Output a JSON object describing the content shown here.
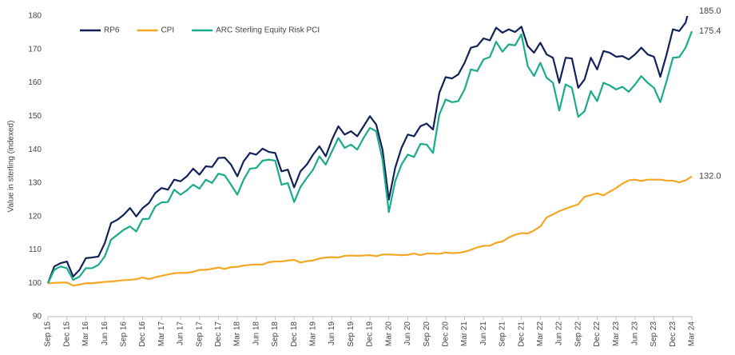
{
  "chart_data": {
    "type": "line",
    "y_label": "Value in sterling (indexed)",
    "ylim": [
      90,
      180
    ],
    "yticks": [
      90,
      100,
      110,
      120,
      130,
      140,
      150,
      160,
      170,
      180
    ],
    "grid": false,
    "legend": "top-left",
    "categories": [
      "Sep 15",
      null,
      null,
      "Dec 15",
      null,
      null,
      "Mar 16",
      null,
      null,
      "Jun 16",
      null,
      null,
      "Sep 16",
      null,
      null,
      "Dec 16",
      null,
      null,
      "Mar 17",
      null,
      null,
      "Jun 17",
      null,
      null,
      "Sep 17",
      null,
      null,
      "Dec 17",
      null,
      null,
      "Mar 18",
      null,
      null,
      "Jun 18",
      null,
      null,
      "Sep 18",
      null,
      null,
      "Dec 18",
      null,
      null,
      "Mar 19",
      null,
      null,
      "Jun 19",
      null,
      null,
      "Sep 19",
      null,
      null,
      "Dec 19",
      null,
      null,
      "Mar 20",
      null,
      null,
      "Jun 20",
      null,
      null,
      "Sep 20",
      null,
      null,
      "Dec 20",
      null,
      null,
      "Mar 21",
      null,
      null,
      "Jun 21",
      null,
      null,
      "Sep 21",
      null,
      null,
      "Dec 21",
      null,
      null,
      "Mar 22",
      null,
      null,
      "Jun 22",
      null,
      null,
      "Sep 22",
      null,
      null,
      "Dec 22",
      null,
      null,
      "Mar 23",
      null,
      null,
      "Jun 23",
      null,
      null,
      "Sep 23",
      null,
      null,
      "Dec 23",
      null,
      null,
      "Mar 24"
    ],
    "series": [
      {
        "name": "RP6",
        "color": "#13215a",
        "values": [
          100,
          105,
          106,
          106.5,
          102,
          104,
          107.5,
          107.7,
          108,
          112,
          118,
          119,
          120.5,
          122.5,
          120,
          122.5,
          124,
          127,
          128.5,
          128,
          131,
          130.5,
          132,
          134.3,
          132.5,
          135,
          134.8,
          137.5,
          137.6,
          135.5,
          132,
          136.5,
          139,
          138.5,
          140.3,
          139.3,
          139,
          133.5,
          134,
          128.7,
          133.5,
          135.5,
          138.5,
          141,
          138,
          143,
          147,
          144.5,
          145.5,
          144,
          147,
          150,
          147.5,
          140,
          125,
          134.5,
          140.5,
          144.5,
          144,
          147,
          147.8,
          146,
          157,
          161.7,
          161.3,
          162.5,
          166,
          170.5,
          171,
          173.3,
          172.7,
          176.5,
          175,
          176,
          175.2,
          176.8,
          171,
          169,
          172,
          168.5,
          167.5,
          160,
          167.5,
          167.3,
          158.5,
          161,
          167.5,
          164,
          169.5,
          169,
          167.8,
          168,
          167,
          168.5,
          170.5,
          168.5,
          167.8,
          161.8,
          168.5,
          176,
          175.5,
          178,
          185.0
        ],
        "value_labels": [
          null,
          null,
          null,
          null,
          null,
          null,
          null,
          null,
          null,
          null,
          null,
          null,
          null,
          null,
          null,
          null,
          null,
          null,
          null,
          null,
          null,
          null,
          null,
          null,
          null,
          null,
          null,
          null,
          null,
          null,
          null,
          null,
          null,
          null,
          null,
          null,
          null,
          null,
          null,
          null,
          null,
          null,
          null,
          null,
          null,
          null,
          null,
          null,
          null,
          null,
          null,
          null,
          null,
          null,
          null,
          null,
          null,
          null,
          null,
          null,
          null,
          null,
          null,
          null,
          null,
          null,
          null,
          null,
          null,
          null,
          null,
          null,
          null,
          null,
          null,
          null,
          null,
          null,
          null,
          null,
          null,
          null,
          null,
          null,
          null,
          null,
          null,
          null,
          null,
          null,
          null,
          null,
          null,
          null,
          null,
          null,
          null,
          null,
          null,
          null,
          null,
          null,
          "185.0"
        ]
      },
      {
        "name": "CPI",
        "color": "#f5a623",
        "values": [
          100,
          100.1,
          100.2,
          100.2,
          99.3,
          99.6,
          100,
          100,
          100.2,
          100.4,
          100.5,
          100.7,
          100.9,
          101,
          101.2,
          101.7,
          101.2,
          101.8,
          102.2,
          102.6,
          103,
          103.1,
          103.1,
          103.4,
          104,
          104,
          104.3,
          104.7,
          104.3,
          104.8,
          104.9,
          105.3,
          105.5,
          105.6,
          105.6,
          106.3,
          106.5,
          106.5,
          106.8,
          107,
          106.2,
          106.6,
          106.8,
          107.4,
          107.7,
          107.8,
          107.7,
          108.2,
          108.3,
          108.2,
          108.3,
          108.4,
          108.1,
          108.6,
          108.6,
          108.5,
          108.4,
          108.5,
          108.9,
          108.4,
          108.9,
          108.9,
          108.8,
          109.2,
          109,
          109.1,
          109.4,
          110,
          110.7,
          111.2,
          111.2,
          112.1,
          112.5,
          113.7,
          114.5,
          115,
          114.9,
          115.8,
          117,
          119.7,
          120.6,
          121.6,
          122.3,
          123,
          123.6,
          125.9,
          126.4,
          126.9,
          126.3,
          127.4,
          128.5,
          129.8,
          130.8,
          131,
          130.6,
          131,
          131,
          131,
          130.7,
          130.7,
          130.2,
          130.8,
          132.0
        ],
        "value_labels": [
          null,
          null,
          null,
          null,
          null,
          null,
          null,
          null,
          null,
          null,
          null,
          null,
          null,
          null,
          null,
          null,
          null,
          null,
          null,
          null,
          null,
          null,
          null,
          null,
          null,
          null,
          null,
          null,
          null,
          null,
          null,
          null,
          null,
          null,
          null,
          null,
          null,
          null,
          null,
          null,
          null,
          null,
          null,
          null,
          null,
          null,
          null,
          null,
          null,
          null,
          null,
          null,
          null,
          null,
          null,
          null,
          null,
          null,
          null,
          null,
          null,
          null,
          null,
          null,
          null,
          null,
          null,
          null,
          null,
          null,
          null,
          null,
          null,
          null,
          null,
          null,
          null,
          null,
          null,
          null,
          null,
          null,
          null,
          null,
          null,
          null,
          null,
          null,
          null,
          null,
          null,
          null,
          null,
          null,
          null,
          null,
          null,
          null,
          null,
          null,
          null,
          null,
          "132.0"
        ]
      },
      {
        "name": "ARC Sterling Equity Risk PCI",
        "color": "#1aab8b",
        "values": [
          100,
          104,
          105,
          104.5,
          101,
          102,
          104.5,
          104.5,
          105.5,
          108,
          113,
          114.5,
          116,
          117,
          115.5,
          119.2,
          119.3,
          123,
          124.2,
          124.3,
          128,
          126.5,
          127.8,
          129.5,
          128.3,
          131,
          130,
          132.8,
          132.3,
          129.5,
          126.5,
          131,
          134.3,
          134.5,
          136.7,
          137,
          136.7,
          129.5,
          130,
          124.3,
          128.8,
          131.5,
          134,
          138,
          135.5,
          139.5,
          143.5,
          140.5,
          141.5,
          140,
          143.5,
          146.5,
          145.5,
          137,
          121.3,
          130.5,
          135.5,
          138.5,
          137.8,
          141.7,
          141.5,
          139,
          150.5,
          155,
          154.2,
          154.5,
          158,
          164,
          163.5,
          167,
          167.7,
          172.3,
          169.3,
          171.5,
          171.2,
          174.5,
          165,
          162,
          166,
          161.5,
          160,
          151.7,
          159.5,
          158.5,
          149.8,
          151.5,
          157.5,
          154.5,
          160,
          159.2,
          158,
          158.8,
          157.3,
          159.5,
          162,
          160,
          158.5,
          154.2,
          160.5,
          167.5,
          167.7,
          170.5,
          175.4
        ],
        "value_labels": [
          null,
          null,
          null,
          null,
          null,
          null,
          null,
          null,
          null,
          null,
          null,
          null,
          null,
          null,
          null,
          null,
          null,
          null,
          null,
          null,
          null,
          null,
          null,
          null,
          null,
          null,
          null,
          null,
          null,
          null,
          null,
          null,
          null,
          null,
          null,
          null,
          null,
          null,
          null,
          null,
          null,
          null,
          null,
          null,
          null,
          null,
          null,
          null,
          null,
          null,
          null,
          null,
          null,
          null,
          null,
          null,
          null,
          null,
          null,
          null,
          null,
          null,
          null,
          null,
          null,
          null,
          null,
          null,
          null,
          null,
          null,
          null,
          null,
          null,
          null,
          null,
          null,
          null,
          null,
          null,
          null,
          null,
          null,
          null,
          null,
          null,
          null,
          null,
          null,
          null,
          null,
          null,
          null,
          null,
          null,
          null,
          null,
          null,
          null,
          null,
          null,
          null,
          "175.4"
        ]
      }
    ]
  }
}
